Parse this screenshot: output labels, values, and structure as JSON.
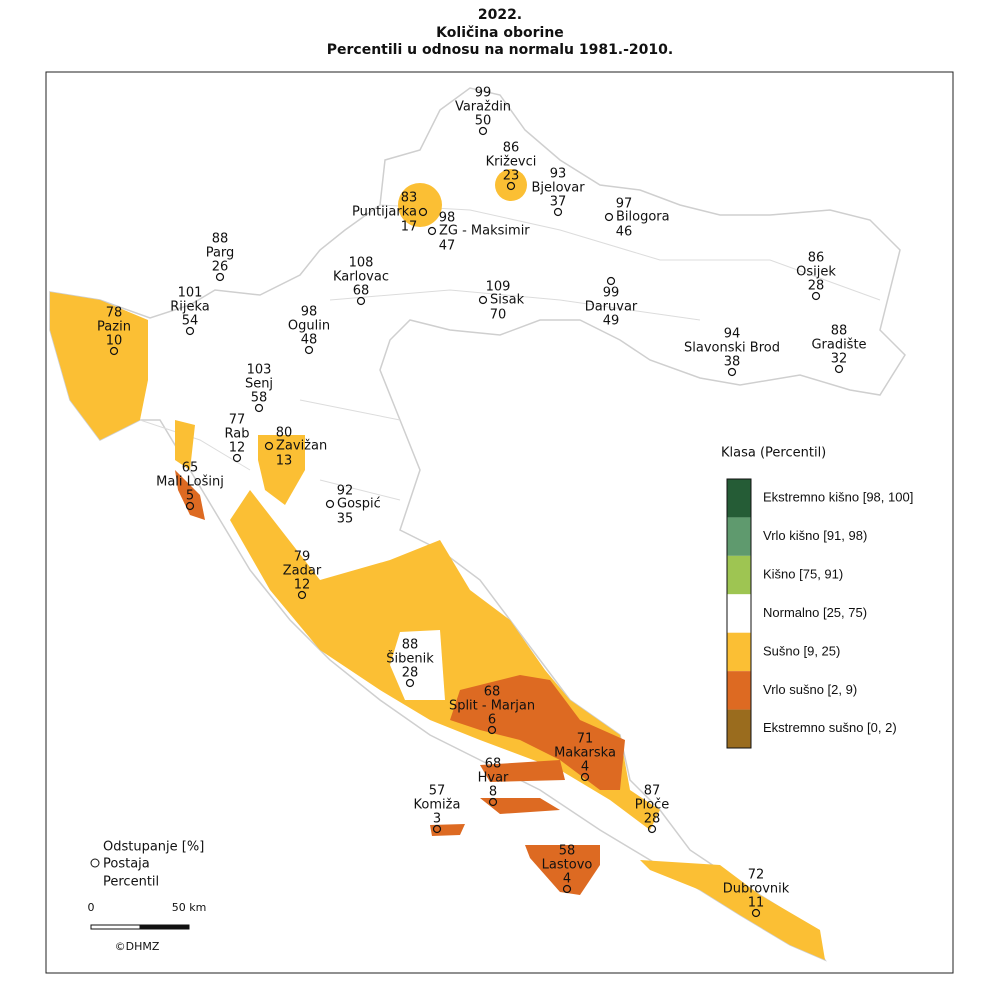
{
  "title": [
    "2022.",
    "Količina oborine",
    "Percentili u odnosu na normalu 1981.-2010."
  ],
  "stations": [
    {
      "deviation": 99,
      "name": "Varaždin",
      "percentile": 50
    },
    {
      "deviation": 86,
      "name": "Križevci",
      "percentile": 23
    },
    {
      "deviation": 93,
      "name": "Bjelovar",
      "percentile": 37
    },
    {
      "deviation": 83,
      "name": "Puntijarka",
      "percentile": 17
    },
    {
      "deviation": 98,
      "name": "ZG - Maksimir",
      "percentile": 47
    },
    {
      "deviation": 97,
      "name": "Bilogora",
      "percentile": 46
    },
    {
      "deviation": 88,
      "name": "Parg",
      "percentile": 26
    },
    {
      "deviation": 101,
      "name": "Rijeka",
      "percentile": 54
    },
    {
      "deviation": 78,
      "name": "Pazin",
      "percentile": 10
    },
    {
      "deviation": 98,
      "name": "Ogulin",
      "percentile": 48
    },
    {
      "deviation": 108,
      "name": "Karlovac",
      "percentile": 68
    },
    {
      "deviation": 109,
      "name": "Sisak",
      "percentile": 70
    },
    {
      "deviation": 99,
      "name": "Daruvar",
      "percentile": 49
    },
    {
      "deviation": 86,
      "name": "Osijek",
      "percentile": 28
    },
    {
      "deviation": 94,
      "name": "Slavonski Brod",
      "percentile": 38
    },
    {
      "deviation": 88,
      "name": "Gradište",
      "percentile": 32
    },
    {
      "deviation": 103,
      "name": "Senj",
      "percentile": 58
    },
    {
      "deviation": 77,
      "name": "Rab",
      "percentile": 12
    },
    {
      "deviation": 80,
      "name": "Zavižan",
      "percentile": 13
    },
    {
      "deviation": 65,
      "name": "Mali Lošinj",
      "percentile": 5
    },
    {
      "deviation": 92,
      "name": "Gospić",
      "percentile": 35
    },
    {
      "deviation": 79,
      "name": "Zadar",
      "percentile": 12
    },
    {
      "deviation": 88,
      "name": "Šibenik",
      "percentile": 28
    },
    {
      "deviation": 68,
      "name": "Split - Marjan",
      "percentile": 6
    },
    {
      "deviation": 71,
      "name": "Makarska",
      "percentile": 4
    },
    {
      "deviation": 68,
      "name": "Hvar",
      "percentile": 8
    },
    {
      "deviation": 87,
      "name": "Ploče",
      "percentile": 28
    },
    {
      "deviation": 57,
      "name": "Komiža",
      "percentile": 3
    },
    {
      "deviation": 58,
      "name": "Lastovo",
      "percentile": 4
    },
    {
      "deviation": 72,
      "name": "Dubrovnik",
      "percentile": 11
    }
  ],
  "legend": {
    "title": "Klasa (Percentil)",
    "classes": [
      {
        "label": "Ekstremno kišno [98, 100]",
        "color": "#255c36"
      },
      {
        "label": "Vrlo kišno [91, 98)",
        "color": "#5f9a6e"
      },
      {
        "label": "Kišno [75, 91)",
        "color": "#9ec552"
      },
      {
        "label": "Normalno [25, 75)",
        "color": "#ffffff"
      },
      {
        "label": "Sušno [9, 25)",
        "color": "#fbbf34"
      },
      {
        "label": "Vrlo sušno [2, 9)",
        "color": "#dd6a22"
      },
      {
        "label": "Ekstremno sušno [0, 2)",
        "color": "#9a6c1e"
      }
    ]
  },
  "key": {
    "deviation": "Odstupanje [%]",
    "station": "Postaja",
    "percentile": "Percentil"
  },
  "scale": {
    "start": 0,
    "end": "50 km"
  },
  "credit": "©DHMZ"
}
